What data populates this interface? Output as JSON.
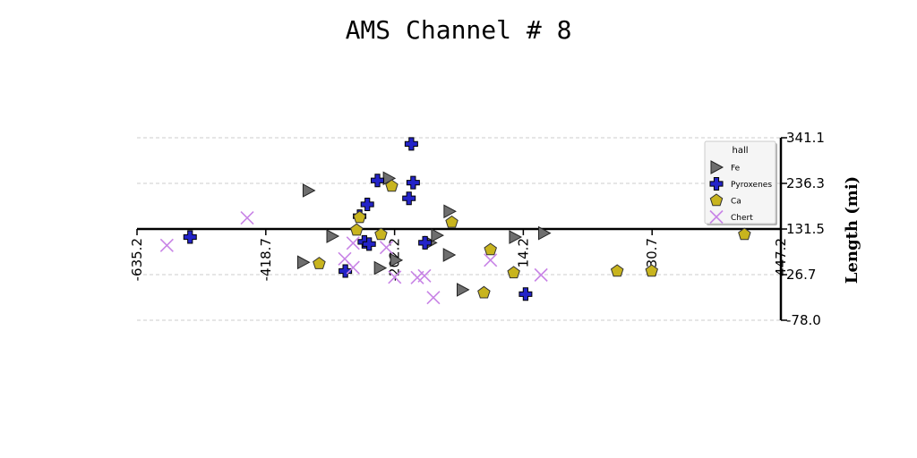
{
  "chart_data": {
    "type": "scatter",
    "title": "AMS Channel # 8",
    "xlabel": "",
    "ylabel": "Length (mi)",
    "xlim": [
      -635.2,
      447.2
    ],
    "ylim": [
      -78.0,
      341.1
    ],
    "x_ticks": [
      "-635.2",
      "-418.7",
      "-202.2",
      "14.2",
      "230.7",
      "447.2"
    ],
    "y_ticks": [
      "341.1",
      "236.3",
      "131.5",
      "26.7",
      "-78.0"
    ],
    "x_tick_values": [
      -635.2,
      -418.7,
      -202.2,
      14.2,
      230.7,
      447.2
    ],
    "y_tick_values": [
      341.1,
      236.3,
      131.5,
      26.7,
      -78.0
    ],
    "grid": "horizontal dashed",
    "legend_title": "hall",
    "legend_position": "upper-right",
    "series": [
      {
        "name": "Fe",
        "marker": "triangle-right",
        "color": "#6e6e6e",
        "points": [
          [
            -347,
            220
          ],
          [
            -307,
            115
          ],
          [
            -356,
            55
          ],
          [
            -227,
            42
          ],
          [
            -212,
            248
          ],
          [
            -200,
            60
          ],
          [
            -142,
            100
          ],
          [
            -131,
            117
          ],
          [
            -110,
            172
          ],
          [
            -111,
            72
          ],
          [
            -88,
            -8
          ],
          [
            0,
            113
          ],
          [
            49,
            122
          ]
        ]
      },
      {
        "name": "Pyroxenes",
        "marker": "plus",
        "color": "#2323c8",
        "points": [
          [
            -546,
            113
          ],
          [
            -174,
            327
          ],
          [
            -178,
            202
          ],
          [
            -171,
            238
          ],
          [
            -231,
            243
          ],
          [
            -248,
            188
          ],
          [
            -261,
            161
          ],
          [
            -253,
            102
          ],
          [
            -245,
            97
          ],
          [
            -285,
            35
          ],
          [
            -151,
            100
          ],
          [
            18,
            -18
          ]
        ]
      },
      {
        "name": "Ca",
        "marker": "pentagon",
        "color": "#c8b41e",
        "points": [
          [
            -329,
            52
          ],
          [
            -266,
            129
          ],
          [
            -261,
            158
          ],
          [
            -225,
            119
          ],
          [
            -207,
            230
          ],
          [
            -106,
            147
          ],
          [
            -41,
            84
          ],
          [
            -2,
            31
          ],
          [
            -52,
            -15
          ],
          [
            172,
            35
          ],
          [
            230,
            35
          ],
          [
            386,
            119
          ]
        ]
      },
      {
        "name": "Chert",
        "marker": "x",
        "color": "#c884e6",
        "points": [
          [
            -585,
            94
          ],
          [
            -450,
            157
          ],
          [
            -286,
            63
          ],
          [
            -272,
            43
          ],
          [
            -272,
            99
          ],
          [
            -216,
            89
          ],
          [
            -202,
            21
          ],
          [
            -164,
            20
          ],
          [
            -152,
            24
          ],
          [
            -137,
            -26
          ],
          [
            -41,
            60
          ],
          [
            44,
            26
          ]
        ]
      }
    ]
  }
}
